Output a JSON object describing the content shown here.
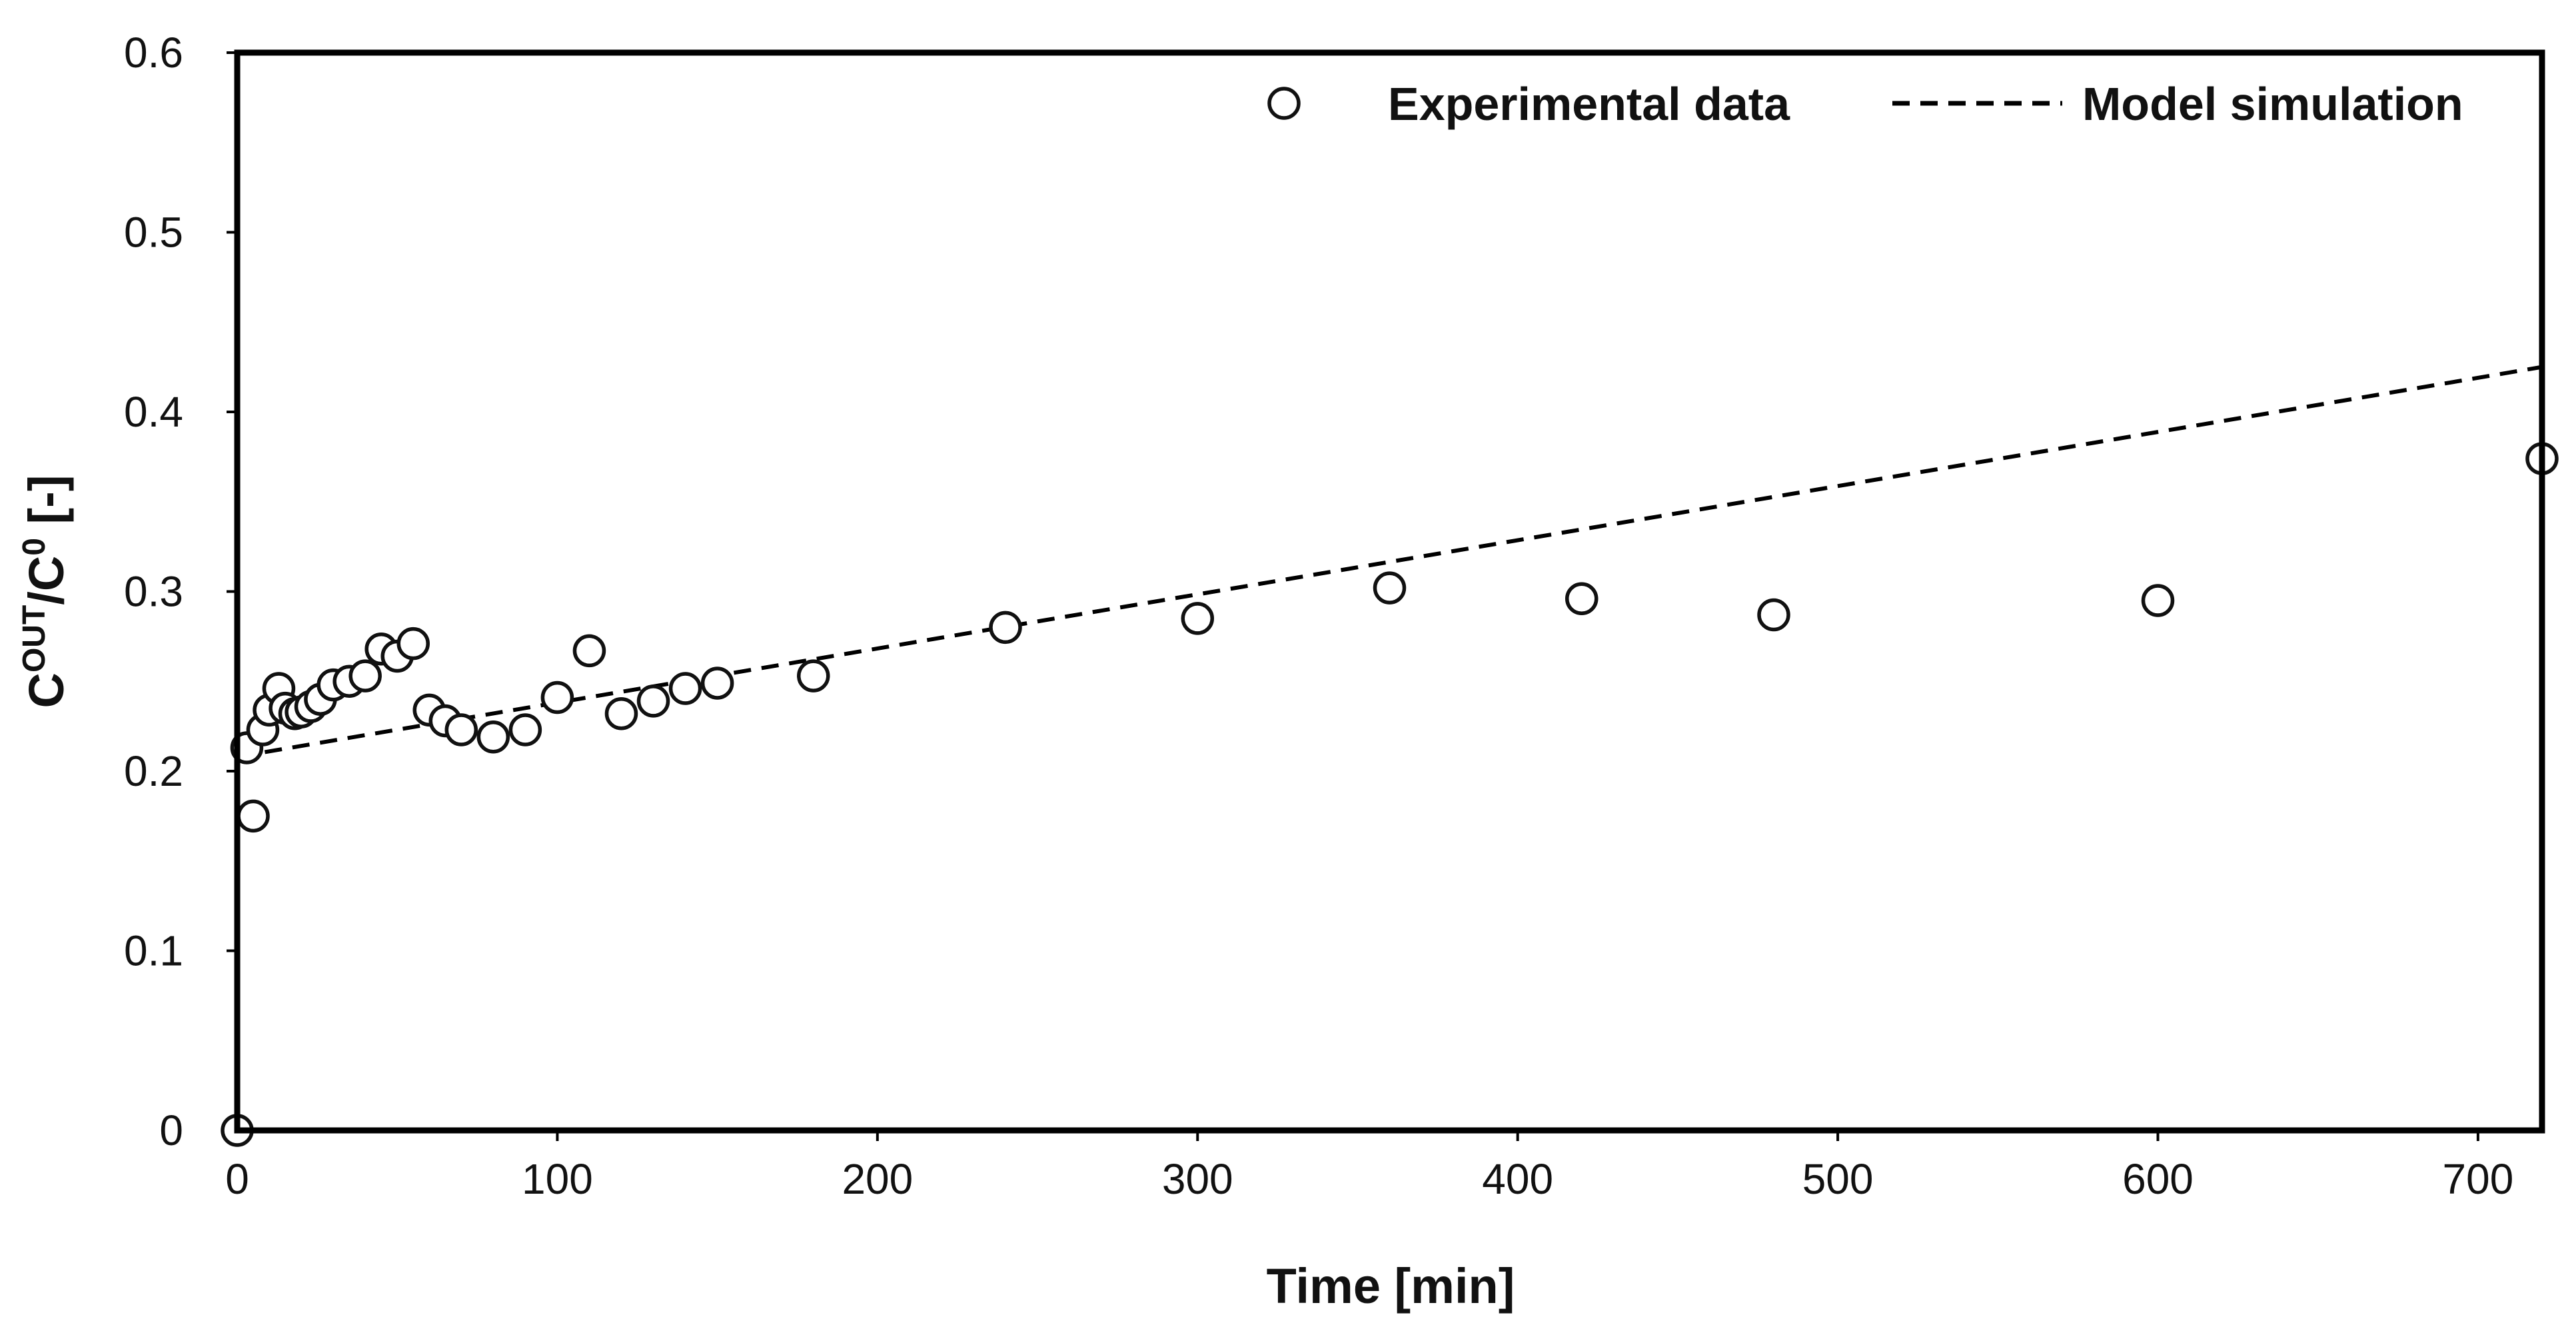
{
  "chart_data": {
    "type": "scatter",
    "title": "",
    "xlabel": "Time [min]",
    "ylabel": "C<sup>OUT</sup>/C<sup>0</sup> [-]",
    "ylabel_parts": {
      "c1": "C",
      "sup1": "OUT",
      "slash": "/C",
      "sup2": "0",
      "unit": " [-]"
    },
    "xlim": [
      0,
      720
    ],
    "ylim": [
      0,
      0.6
    ],
    "x_ticks": [
      0,
      100,
      200,
      300,
      400,
      500,
      600,
      700
    ],
    "x_tick_labels": [
      "0",
      "100",
      "200",
      "300",
      "400",
      "500",
      "600",
      "700"
    ],
    "y_ticks": [
      0,
      0.1,
      0.2,
      0.3,
      0.4,
      0.5,
      0.6
    ],
    "y_tick_labels": [
      "0",
      "0.1",
      "0.2",
      "0.3",
      "0.4",
      "0.5",
      "0.6"
    ],
    "grid": false,
    "legend_position": "top-right",
    "legend": {
      "experimental": "Experimental data",
      "model": "Model simulation"
    },
    "series": [
      {
        "name": "Experimental data",
        "style": "open-circle",
        "x": [
          0,
          3,
          5,
          8,
          10,
          13,
          15,
          18,
          20,
          23,
          26,
          30,
          35,
          40,
          45,
          50,
          55,
          60,
          65,
          70,
          80,
          90,
          100,
          110,
          120,
          130,
          140,
          150,
          180,
          240,
          300,
          360,
          420,
          480,
          600,
          720
        ],
        "y": [
          0.0,
          0.213,
          0.175,
          0.223,
          0.234,
          0.246,
          0.235,
          0.232,
          0.233,
          0.236,
          0.24,
          0.248,
          0.25,
          0.253,
          0.268,
          0.264,
          0.271,
          0.234,
          0.228,
          0.223,
          0.219,
          0.223,
          0.241,
          0.267,
          0.232,
          0.239,
          0.246,
          0.249,
          0.253,
          0.28,
          0.285,
          0.302,
          0.296,
          0.287,
          0.295,
          0.374
        ]
      },
      {
        "name": "Model simulation",
        "style": "dashed-line",
        "x": [
          0,
          720
        ],
        "y": [
          0.208,
          0.425
        ]
      }
    ]
  }
}
